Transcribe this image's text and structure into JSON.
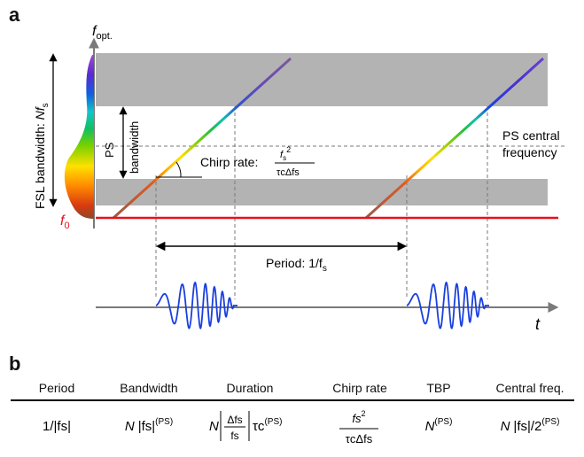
{
  "panel_a": {
    "label": "a",
    "y_axis_label": "f",
    "y_axis_subscript": "opt.",
    "t_axis_label": "t",
    "fsl_bandwidth_text": "FSL bandwidth: ",
    "fsl_bandwidth_N": "N",
    "fsl_bandwidth_f": "f",
    "fsl_bandwidth_sub": "s",
    "f0_label": "f",
    "f0_sub": "0",
    "ps_bandwidth_line1": "PS",
    "ps_bandwidth_line2": "bandwidth",
    "ps_central_line1": "PS central",
    "ps_central_line2": "frequency",
    "chirp_rate_text": "Chirp rate:",
    "chirp_num_f": "f",
    "chirp_num_sub": "s",
    "chirp_num_sup": "2",
    "chirp_den": "τcΔfs",
    "period_text": "Period: 1/f",
    "period_sub": "s",
    "colors": {
      "gray_band": "#b3b3b3",
      "baseline": "#e8101a",
      "wave": "#1a3fe0",
      "axis": "#7a7a7a",
      "dashed": "#7a7a7a"
    }
  },
  "panel_b": {
    "label": "b",
    "headers": [
      "Period",
      "Bandwidth",
      "Duration",
      "Chirp rate",
      "TBP",
      "Central freq."
    ],
    "period_value": "1/|fs|",
    "bandwidth_N": "N",
    "bandwidth_f": "|fs|",
    "bandwidth_sup": "(PS)",
    "duration_N": "N",
    "duration_frac_num": "Δfs",
    "duration_frac_den": "fs",
    "duration_tau": "τc",
    "duration_sup": "(PS)",
    "chirp_num": "fs",
    "chirp_num_sup": "2",
    "chirp_den": "τcΔfs",
    "tbp_N": "N",
    "tbp_sup": "(PS)",
    "central_N": "N",
    "central_f": "|fs|/2",
    "central_sup": "(PS)"
  }
}
